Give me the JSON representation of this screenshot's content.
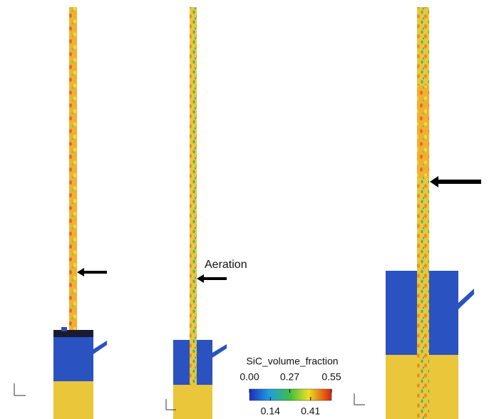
{
  "annotation": "Aeration",
  "colorbar": {
    "title": "SiC_volume_fraction",
    "range": [
      0,
      0.55
    ],
    "ticks": [
      {
        "value": 0,
        "label": "0.00"
      },
      0.14,
      0.27,
      0.41,
      0.55
    ]
  }
}
